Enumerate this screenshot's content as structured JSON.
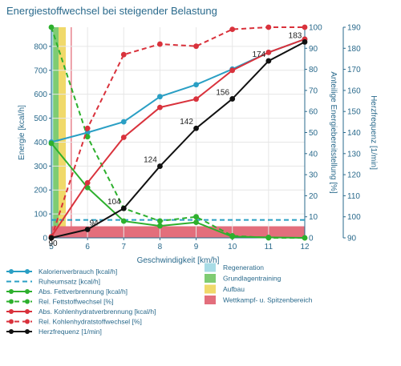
{
  "chart_data": {
    "type": "line",
    "title": "Energiestoffwechsel bei steigender Belastung",
    "xlabel": "Geschwindigkeit [km/h]",
    "ylabel_left": "Energie [kcal/h]",
    "ylabel_right1": "Anteilige Energiebereitstellung [%]",
    "ylabel_right2": "Herzfrequenz [1/min]",
    "xlim": [
      5,
      12
    ],
    "ylim_left": [
      0,
      880
    ],
    "ylim_right1": [
      0,
      100
    ],
    "ylim_right2": [
      90,
      190
    ],
    "x_ticks": [
      5,
      6,
      7,
      8,
      9,
      10,
      11,
      12
    ],
    "y_left_ticks": [
      0,
      100,
      200,
      300,
      400,
      500,
      600,
      700,
      800
    ],
    "y_right1_ticks": [
      0,
      10,
      20,
      30,
      40,
      50,
      60,
      70,
      80,
      90,
      100
    ],
    "y_right2_ticks": [
      90,
      100,
      110,
      120,
      130,
      140,
      150,
      160,
      170,
      180,
      190
    ],
    "zones": [
      {
        "name": "Regeneration",
        "color": "#a8dce6",
        "orientation": "vertical",
        "x_from": 5.0,
        "x_to": 5.05
      },
      {
        "name": "Grundlagentraining",
        "color": "#7fcc72",
        "orientation": "vertical",
        "x_from": 5.05,
        "x_to": 5.2
      },
      {
        "name": "Aufbau",
        "color": "#f0d96a",
        "orientation": "vertical",
        "x_from": 5.2,
        "x_to": 5.4
      },
      {
        "name": "Wettkampf- u. Spitzenbereich",
        "color": "#e36e7c",
        "orientation": "horizontal",
        "axis": "hr",
        "y_from": 90,
        "y_to": 95.5,
        "x_from": 5.0,
        "x_to": 12.0
      }
    ],
    "zone_line_x": 5.55,
    "series": [
      {
        "name": "Kalorienverbrauch [kcal/h]",
        "color": "#2a9fc4",
        "axis": "left",
        "dash": false,
        "x": [
          5,
          6,
          7,
          8,
          9,
          10,
          11,
          12
        ],
        "values": [
          400,
          440,
          485,
          590,
          640,
          705,
          775,
          830
        ]
      },
      {
        "name": "Ruheumsatz [kcal/h]",
        "color": "#2a9fc4",
        "axis": "left",
        "dash": true,
        "markers": false,
        "x": [
          5,
          12
        ],
        "values": [
          75,
          75
        ]
      },
      {
        "name": "Abs. Fettverbrennung [kcal/h]",
        "color": "#2db02d",
        "axis": "left",
        "dash": false,
        "x": [
          5,
          6,
          7,
          8,
          9,
          10,
          11,
          12
        ],
        "values": [
          395,
          210,
          70,
          50,
          65,
          5,
          2,
          0
        ]
      },
      {
        "name": "Rel. Fettstoffwechsel [%]",
        "color": "#2db02d",
        "axis": "right1",
        "dash": true,
        "x": [
          5,
          6,
          7,
          8,
          9,
          10,
          11,
          12
        ],
        "values": [
          100,
          48,
          14,
          8,
          10,
          1,
          0,
          0
        ]
      },
      {
        "name": "Abs. Kohlenhydratverbrennung [kcal/h]",
        "color": "#d9323c",
        "axis": "left",
        "dash": false,
        "x": [
          5,
          6,
          7,
          8,
          9,
          10,
          11,
          12
        ],
        "values": [
          5,
          230,
          420,
          545,
          580,
          700,
          775,
          830
        ]
      },
      {
        "name": "Rel. Kohlenhydratstoffwechsel [%]",
        "color": "#d9323c",
        "axis": "right1",
        "dash": true,
        "x": [
          5,
          6,
          7,
          8,
          9,
          10,
          11,
          12
        ],
        "values": [
          0,
          52,
          87,
          92,
          91,
          99,
          100,
          100
        ]
      },
      {
        "name": "Herzfrequenz [1/min]",
        "color": "#111111",
        "axis": "right2",
        "dash": false,
        "x": [
          5,
          6,
          7,
          8,
          9,
          10,
          11,
          12
        ],
        "values": [
          90,
          94,
          104,
          124,
          142,
          156,
          174,
          183
        ]
      }
    ],
    "hr_labels": [
      "90",
      "94",
      "104",
      "124",
      "142",
      "156",
      "174",
      "183"
    ],
    "legend_placement": "bottom"
  }
}
